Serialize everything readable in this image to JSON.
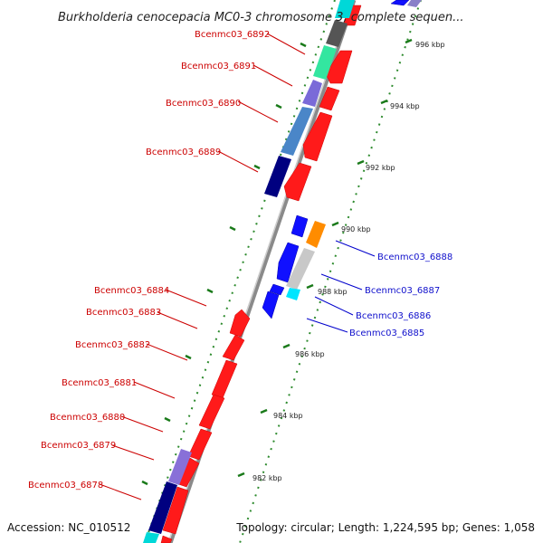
{
  "title": "Burkholderia cenocepacia MC0-3 chromosome 3, complete sequen...",
  "accession": "Accession: NC_010512",
  "summary": "Topology: circular; Length: 1,224,595 bp; Genes: 1,058",
  "colors": {
    "reverse_strand": "#ff0000",
    "forward_strand": "#0000ff",
    "tick_marks": "#008000",
    "backbone": "#999999"
  },
  "left_labels": [
    "Bcenmc03_6892",
    "Bcenmc03_6891",
    "Bcenmc03_6890",
    "Bcenmc03_6889",
    "Bcenmc03_6884",
    "Bcenmc03_6883",
    "Bcenmc03_6882",
    "Bcenmc03_6881",
    "Bcenmc03_6880",
    "Bcenmc03_6879",
    "Bcenmc03_6878"
  ],
  "right_labels": [
    "Bcenmc03_6888",
    "Bcenmc03_6887",
    "Bcenmc03_6886",
    "Bcenmc03_6885"
  ],
  "ticks": [
    "996 kbp",
    "994 kbp",
    "992 kbp",
    "990 kbp",
    "988 kbp",
    "986 kbp",
    "984 kbp",
    "982 kbp"
  ]
}
